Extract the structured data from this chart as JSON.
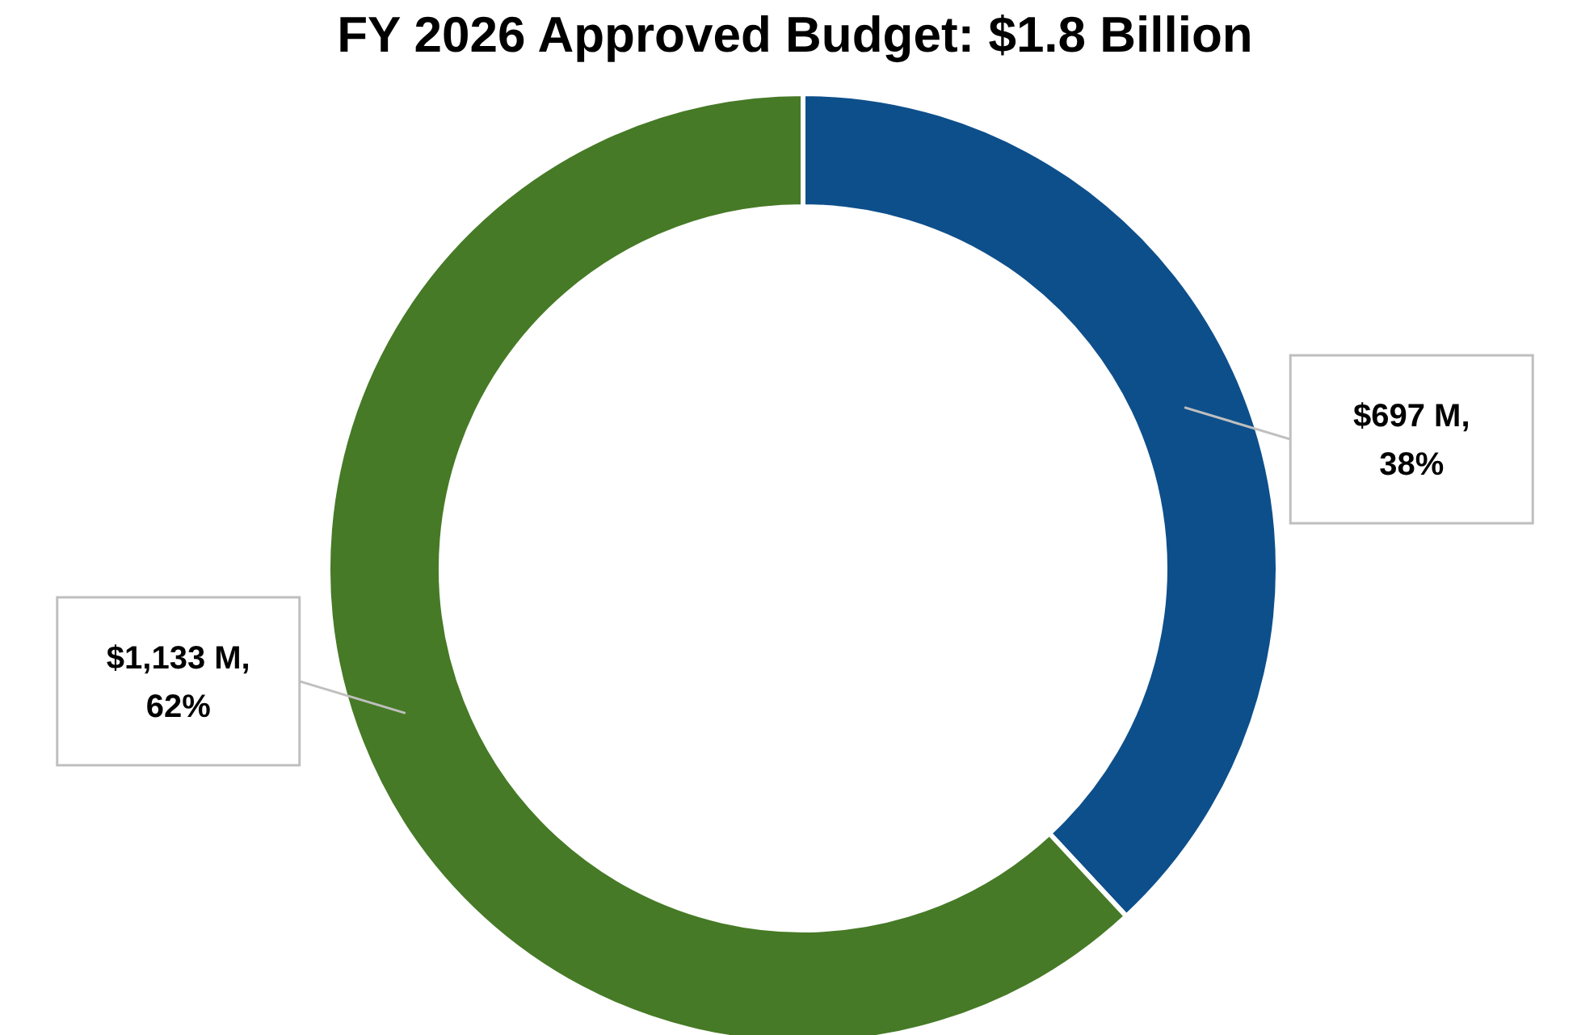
{
  "chart_data": {
    "type": "donut",
    "title": "FY 2026 Approved Budget: $1.8 Billion",
    "categories": [
      null,
      null
    ],
    "values": [
      697,
      1133
    ],
    "colors": [
      "#0d4f8b",
      "#467a26"
    ],
    "value_labels": [
      "$697 M, 38%",
      "$1,133 M, 62%"
    ]
  }
}
